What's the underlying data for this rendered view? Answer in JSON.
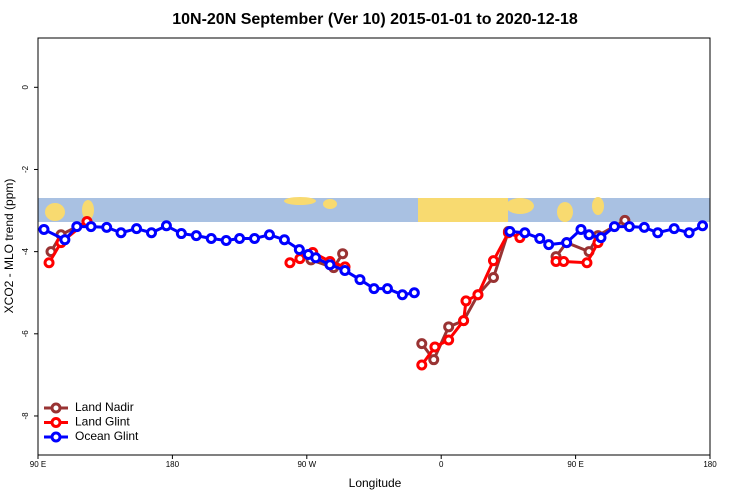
{
  "chart_data": {
    "type": "line",
    "title": "10N-20N September (Ver 10)   2015-01-01 to 2020-12-18",
    "x_label": "Longitude",
    "y_label": "XCO2 - MLO trend (ppm)",
    "xlim": [
      90,
      540
    ],
    "ylim": [
      -8.95,
      1.2
    ],
    "xticks": [
      {
        "value": 90,
        "label": "90 E"
      },
      {
        "value": 180,
        "label": "180"
      },
      {
        "value": 270,
        "label": "90 W"
      },
      {
        "value": 360,
        "label": "0"
      },
      {
        "value": 450,
        "label": "90 E"
      },
      {
        "value": 540,
        "label": "180"
      }
    ],
    "yticks": [
      -8,
      -6,
      -4,
      -2,
      0
    ],
    "legend": "bottom-left",
    "series": [
      {
        "name": "Land Nadir",
        "color": "#993333",
        "x": [
          98.7,
          105.4,
          122.8,
          null,
          272.8,
          288,
          294,
          null,
          347,
          355,
          365,
          375,
          384.6,
          395,
          405,
          null,
          436.9,
          444,
          459,
          465,
          483
        ],
        "values": [
          -4.0,
          -3.59,
          -3.27,
          null,
          -4.2,
          -4.39,
          -4.05,
          null,
          -6.24,
          -6.63,
          -5.83,
          -5.68,
          -5.05,
          -4.63,
          -3.51,
          null,
          -4.12,
          -3.78,
          -4.0,
          -3.61,
          -3.24
        ]
      },
      {
        "name": "Land Glint",
        "color": "#ff0000",
        "x": [
          97.4,
          105.4,
          122.8,
          null,
          258.7,
          265.4,
          274,
          285.5,
          295.6,
          null,
          347,
          355.8,
          365,
          375,
          376.6,
          384.6,
          395,
          405,
          412.7,
          null,
          436.9,
          442,
          457.6,
          465
        ],
        "values": [
          -4.27,
          -3.78,
          -3.27,
          null,
          -4.27,
          -4.17,
          -4.02,
          -4.24,
          -4.37,
          null,
          -6.76,
          -6.32,
          -6.15,
          -5.68,
          -5.2,
          -5.05,
          -4.22,
          -3.54,
          -3.66,
          null,
          -4.24,
          -4.24,
          -4.27,
          -3.78
        ]
      },
      {
        "name": "Ocean Glint",
        "color": "#0000ff",
        "x": [
          94,
          108,
          116,
          125.5,
          136,
          145.6,
          156,
          166,
          176,
          186,
          196,
          206,
          216,
          225,
          235,
          245,
          255,
          265,
          271,
          276,
          285.5,
          295.5,
          305.6,
          315,
          324,
          334,
          342,
          null,
          406,
          416,
          426,
          432,
          444,
          453.6,
          459,
          467,
          476,
          486,
          496,
          505,
          516,
          526,
          535
        ],
        "values": [
          -3.46,
          -3.71,
          -3.39,
          -3.39,
          -3.41,
          -3.54,
          -3.44,
          -3.54,
          -3.37,
          -3.56,
          -3.61,
          -3.68,
          -3.73,
          -3.68,
          -3.68,
          -3.59,
          -3.71,
          -3.95,
          -4.07,
          -4.15,
          -4.32,
          -4.46,
          -4.68,
          -4.9,
          -4.9,
          -5.05,
          -5.0,
          null,
          -3.51,
          -3.54,
          -3.68,
          -3.83,
          -3.78,
          -3.46,
          -3.59,
          -3.66,
          -3.39,
          -3.39,
          -3.41,
          -3.54,
          -3.44,
          -3.54,
          -3.37
        ]
      }
    ]
  }
}
